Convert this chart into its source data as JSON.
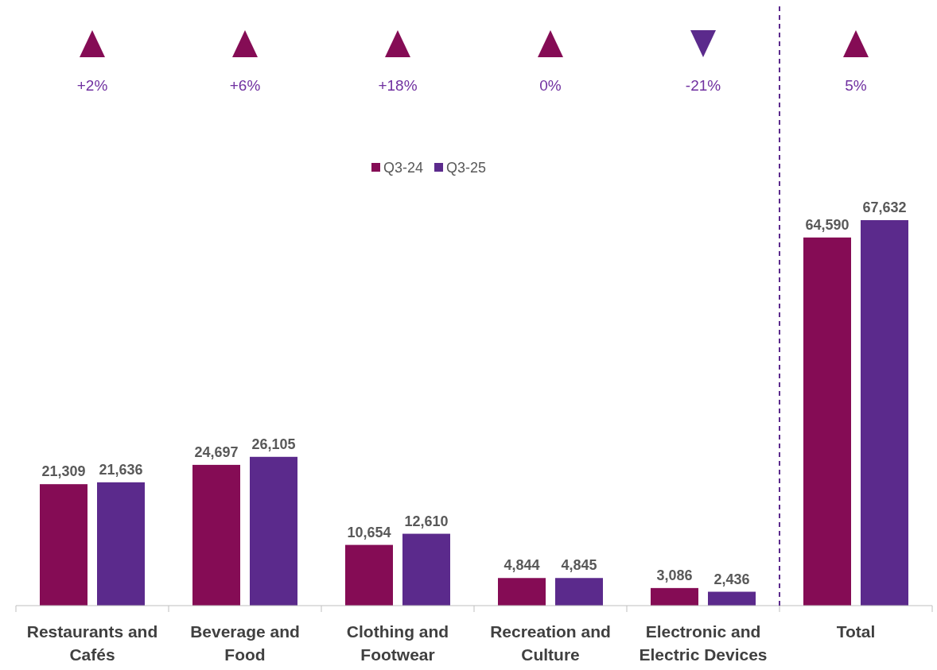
{
  "chart_data": {
    "type": "bar",
    "categories": [
      "Restaurants and Cafés",
      "Beverage and Food",
      "Clothing and Footwear",
      "Recreation and Culture",
      "Electronic and Electric Devices",
      "Total"
    ],
    "series": [
      {
        "name": "Q3-24",
        "color": "#850c55",
        "values": [
          21309,
          24697,
          10654,
          4844,
          3086,
          64590
        ],
        "value_labels": [
          "21,309",
          "24,697",
          "10,654",
          "4,844",
          "3,086",
          "64,590"
        ]
      },
      {
        "name": "Q3-25",
        "color": "#5b2a8c",
        "values": [
          21636,
          26105,
          12610,
          4845,
          2436,
          67632
        ],
        "value_labels": [
          "21,636",
          "26,105",
          "12,610",
          "4,845",
          "2,436",
          "67,632"
        ]
      }
    ],
    "legend": "top",
    "ref_lines": [
      {
        "axis": "x",
        "value": "Total",
        "color": "#5b2a8c",
        "line_style": "dashed"
      }
    ],
    "annotations": [
      "+2%",
      "+6%",
      "+18%",
      "0%",
      "-21%",
      "5%"
    ]
  }
}
